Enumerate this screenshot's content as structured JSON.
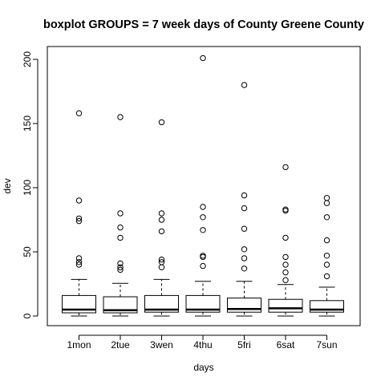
{
  "chart_data": {
    "type": "boxplot",
    "title": "boxplot GROUPS = 7 week days of County Greene County",
    "xlabel": "days",
    "ylabel": "dev",
    "ylim": [
      -8,
      210
    ],
    "yticks": [
      0,
      50,
      100,
      150,
      200
    ],
    "categories": [
      "1mon",
      "2tue",
      "3wen",
      "4thu",
      "5fri",
      "6sat",
      "7sun"
    ],
    "boxes": [
      {
        "min": 0,
        "q1": 2.5,
        "median": 5,
        "q3": 16,
        "max": 28.5,
        "outliers": [
          40,
          42,
          45,
          74,
          76,
          90,
          158
        ]
      },
      {
        "min": 0,
        "q1": 2.5,
        "median": 4.5,
        "q3": 15,
        "max": 25.5,
        "outliers": [
          36,
          38,
          41,
          61,
          69,
          80,
          155
        ]
      },
      {
        "min": 0,
        "q1": 3,
        "median": 5,
        "q3": 16,
        "max": 28.5,
        "outliers": [
          38,
          42,
          44,
          66,
          75,
          80,
          151
        ]
      },
      {
        "min": 0,
        "q1": 3,
        "median": 5,
        "q3": 16,
        "max": 27,
        "outliers": [
          39,
          46,
          47,
          67,
          77,
          85,
          201
        ]
      },
      {
        "min": 0,
        "q1": 3,
        "median": 5.5,
        "q3": 14,
        "max": 27,
        "outliers": [
          37,
          45,
          52,
          68,
          84,
          94,
          180
        ]
      },
      {
        "min": 0,
        "q1": 3,
        "median": 6,
        "q3": 13,
        "max": 24.5,
        "outliers": [
          28,
          34,
          40,
          46,
          61,
          82,
          83,
          116
        ]
      },
      {
        "min": 0,
        "q1": 3,
        "median": 5,
        "q3": 12,
        "max": 22.5,
        "outliers": [
          31,
          40,
          47,
          59,
          77,
          88,
          92
        ]
      }
    ]
  }
}
